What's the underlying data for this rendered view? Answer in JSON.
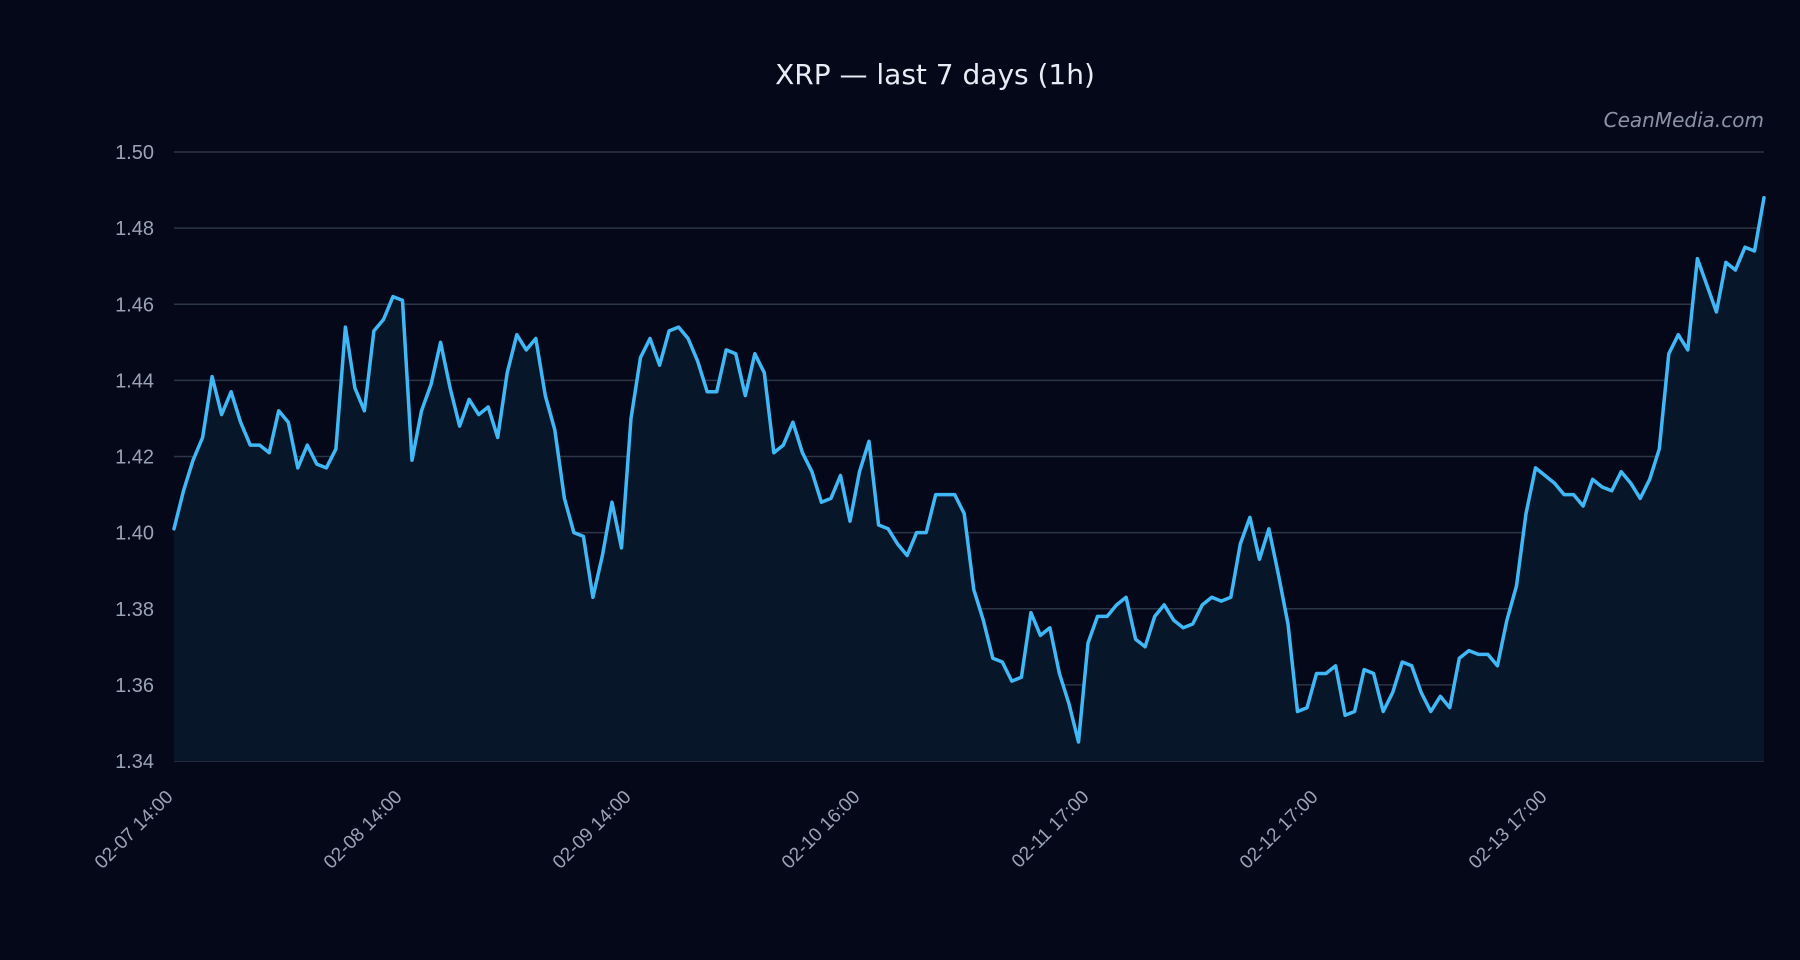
{
  "chart_data": {
    "type": "area",
    "title": "XRP — last 7 days (1h)",
    "watermark": "CeanMedia.com",
    "xlabel": "",
    "ylabel": "",
    "ylim": [
      1.34,
      1.5
    ],
    "y_ticks": [
      "1.34",
      "1.36",
      "1.38",
      "1.40",
      "1.42",
      "1.44",
      "1.46",
      "1.48",
      "1.50"
    ],
    "x_ticks": [
      "02-07 14:00",
      "02-08 14:00",
      "02-09 14:00",
      "02-10 16:00",
      "02-11 17:00",
      "02-12 17:00",
      "02-13 17:00"
    ],
    "grid": true,
    "line_color": "#3fb8f5",
    "fill_color": "#081629",
    "background": "#040818",
    "series": [
      {
        "values": [
          1.401,
          1.411,
          1.419,
          1.425,
          1.441,
          1.431,
          1.437,
          1.429,
          1.423,
          1.423,
          1.421,
          1.432,
          1.429,
          1.417,
          1.423,
          1.418,
          1.417,
          1.422,
          1.454,
          1.438,
          1.432,
          1.453,
          1.456,
          1.462,
          1.461,
          1.419,
          1.432,
          1.439,
          1.45,
          1.438,
          1.428,
          1.435,
          1.431,
          1.433,
          1.425,
          1.442,
          1.452,
          1.448,
          1.451,
          1.436,
          1.427,
          1.409,
          1.4,
          1.399,
          1.383,
          1.394,
          1.408,
          1.396,
          1.43,
          1.446,
          1.451,
          1.444,
          1.453,
          1.454,
          1.451,
          1.445,
          1.437,
          1.437,
          1.448,
          1.447,
          1.436,
          1.447,
          1.442,
          1.421,
          1.423,
          1.429,
          1.421,
          1.416,
          1.408,
          1.409,
          1.415,
          1.403,
          1.416,
          1.424,
          1.402,
          1.401,
          1.397,
          1.394,
          1.4,
          1.4,
          1.41,
          1.41,
          1.41,
          1.405,
          1.385,
          1.377,
          1.367,
          1.366,
          1.361,
          1.362,
          1.379,
          1.373,
          1.375,
          1.363,
          1.355,
          1.345,
          1.371,
          1.378,
          1.378,
          1.381,
          1.383,
          1.372,
          1.37,
          1.378,
          1.381,
          1.377,
          1.375,
          1.376,
          1.381,
          1.383,
          1.382,
          1.383,
          1.397,
          1.404,
          1.393,
          1.401,
          1.389,
          1.376,
          1.353,
          1.354,
          1.363,
          1.363,
          1.365,
          1.352,
          1.353,
          1.364,
          1.363,
          1.353,
          1.358,
          1.366,
          1.365,
          1.358,
          1.353,
          1.357,
          1.354,
          1.367,
          1.369,
          1.368,
          1.368,
          1.365,
          1.377,
          1.386,
          1.405,
          1.417,
          1.415,
          1.413,
          1.41,
          1.41,
          1.407,
          1.414,
          1.412,
          1.411,
          1.416,
          1.413,
          1.409,
          1.414,
          1.422,
          1.447,
          1.452,
          1.448,
          1.472,
          1.465,
          1.458,
          1.471,
          1.469,
          1.475,
          1.474,
          1.488
        ]
      }
    ]
  }
}
